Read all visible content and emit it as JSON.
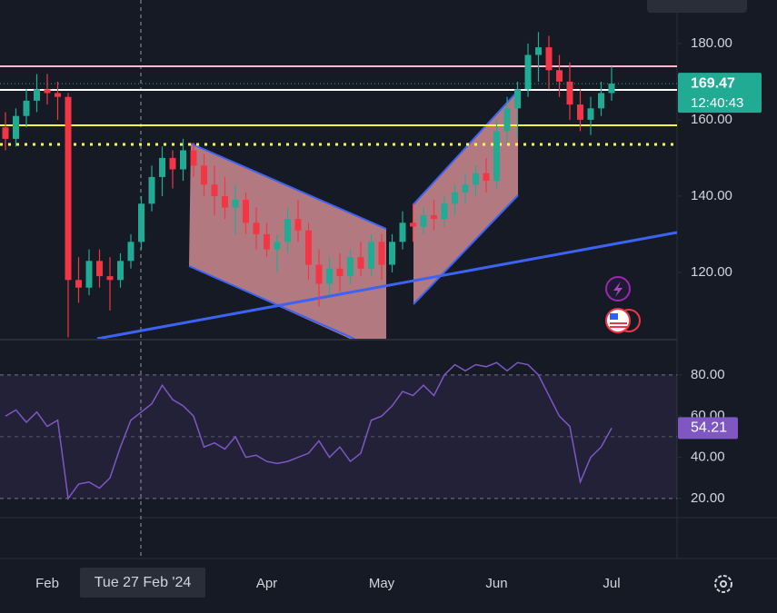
{
  "chart_data": [
    {
      "type": "candlestick",
      "categories": [
        null,
        null,
        null,
        null,
        "Feb",
        null,
        null,
        null,
        null,
        null,
        null,
        null,
        null,
        null,
        null,
        null,
        null,
        null,
        null,
        null,
        null,
        null,
        null,
        null,
        null,
        "Apr",
        null,
        null,
        null,
        null,
        null,
        null,
        null,
        null,
        null,
        null,
        "May",
        null,
        null,
        null,
        null,
        null,
        null,
        null,
        null,
        null,
        null,
        "Jun",
        null,
        null,
        null,
        null,
        null,
        null,
        null,
        null,
        null,
        null,
        "Jul"
      ],
      "open": [
        158,
        155,
        161,
        165,
        168,
        167,
        166,
        118,
        116,
        123,
        119,
        118,
        123,
        128,
        138,
        145,
        150,
        147,
        152,
        148,
        143,
        140,
        137,
        139,
        133,
        130,
        126,
        128,
        134,
        131,
        122,
        117,
        121,
        119,
        124,
        121,
        128,
        122,
        128,
        133,
        132,
        135,
        134,
        138,
        141,
        143,
        146,
        144,
        157,
        163,
        168,
        177,
        179,
        173,
        170,
        164,
        160,
        163,
        167
      ],
      "high": [
        162,
        163,
        168,
        172,
        172,
        170,
        167,
        124,
        126,
        126,
        124,
        125,
        130,
        140,
        148,
        153,
        152,
        155,
        154,
        151,
        148,
        145,
        143,
        141,
        137,
        133,
        130,
        137,
        139,
        133,
        126,
        124,
        125,
        126,
        128,
        130,
        130,
        130,
        136,
        138,
        137,
        139,
        140,
        143,
        146,
        148,
        150,
        160,
        166,
        170,
        180,
        183,
        182,
        177,
        175,
        168,
        166,
        170,
        174
      ],
      "low": [
        152,
        153,
        158,
        162,
        164,
        160,
        103,
        112,
        114,
        116,
        110,
        116,
        121,
        126,
        136,
        140,
        142,
        144,
        145,
        140,
        135,
        134,
        130,
        130,
        126,
        124,
        120,
        125,
        128,
        118,
        111,
        114,
        115,
        117,
        119,
        119,
        118,
        120,
        126,
        128,
        130,
        131,
        132,
        135,
        138,
        140,
        141,
        142,
        154,
        155,
        166,
        170,
        168,
        166,
        160,
        157,
        156,
        161,
        165
      ],
      "close": [
        155,
        161,
        165,
        168,
        167,
        166,
        118,
        116,
        123,
        119,
        118,
        123,
        128,
        138,
        145,
        150,
        147,
        152,
        148,
        143,
        140,
        137,
        139,
        133,
        130,
        126,
        128,
        134,
        131,
        122,
        117,
        121,
        119,
        124,
        121,
        128,
        122,
        128,
        133,
        132,
        135,
        134,
        138,
        141,
        143,
        146,
        144,
        157,
        163,
        168,
        177,
        179,
        173,
        170,
        164,
        160,
        163,
        167,
        169.47
      ],
      "up_color": "#22ab94",
      "down_color": "#f23645",
      "ylim": [
        102.6,
        191.4
      ],
      "yticks": [
        {
          "value": 120,
          "label": "120.00"
        },
        {
          "value": 140,
          "label": "140.00"
        },
        {
          "value": 160,
          "label": "160.00"
        },
        {
          "value": 180,
          "label": "180.00"
        }
      ],
      "grid": false,
      "countdown": "12:40:43",
      "crosshair_label": "Tue 27 Feb '24"
    },
    {
      "type": "line",
      "values": [
        60,
        63,
        57,
        62,
        55,
        58,
        20,
        27,
        28,
        25,
        30,
        45,
        58,
        62,
        66,
        75,
        68,
        65,
        60,
        45,
        47,
        44,
        50,
        40,
        41,
        38,
        37,
        38,
        40,
        42,
        48,
        40,
        45,
        38,
        42,
        58,
        60,
        65,
        72,
        70,
        75,
        70,
        80,
        85,
        82,
        85,
        84,
        86,
        82,
        86,
        85,
        80,
        70,
        60,
        55,
        28,
        40,
        45,
        54.21
      ],
      "color": "#7e57c2",
      "ylim": [
        10.7,
        96.7
      ],
      "yticks": [
        {
          "value": 20,
          "label": "20.00"
        },
        {
          "value": 40,
          "label": "40.00"
        },
        {
          "value": 60,
          "label": "60.00"
        },
        {
          "value": 80,
          "label": "80.00"
        }
      ]
    }
  ]
}
